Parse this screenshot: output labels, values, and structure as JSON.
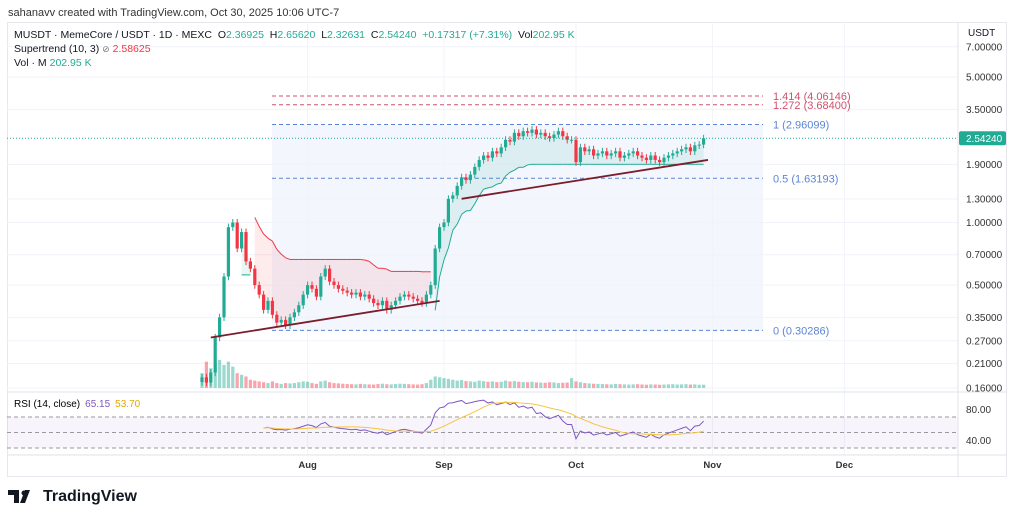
{
  "credit": "sahanavv created with TradingView.com, Oct 30, 2025 10:06 UTC-7",
  "legend": {
    "symbol": "MUSDT · MemeCore / USDT · 1D · MEXC",
    "o_label": "O",
    "o": "2.36925",
    "h_label": "H",
    "h": "2.65620",
    "l_label": "L",
    "l": "2.32631",
    "c_label": "C",
    "c": "2.54240",
    "change": "+0.17317 (+7.31%)",
    "vol_label": "Vol",
    "vol": "202.95 K",
    "supertrend_label": "Supertrend (10, 3)",
    "supertrend_value": "2.58625",
    "volume_label": "Vol · M",
    "volume_value": "202.95 K",
    "rsi_label": "RSI (14, close)",
    "rsi_value": "65.15",
    "rsi_ma_value": "53.70"
  },
  "colors": {
    "up": "#22ab94",
    "down": "#f23645",
    "fib_blue": "#5b85d6",
    "fib_red": "#d0506e",
    "trendline": "#7b1d2a",
    "rsi": "#7e57c2",
    "rsi_ma": "#f5c542"
  },
  "chart_data": {
    "type": "candlestick",
    "currency": "USDT",
    "scale": "log",
    "start_date": "2025-07-08",
    "ylim": [
      0.16,
      7.0
    ],
    "y_ticks": [
      "7.00000",
      "5.00000",
      "3.50000",
      "1.90000",
      "1.30000",
      "1.00000",
      "0.70000",
      "0.50000",
      "0.35000",
      "0.27000",
      "0.21000",
      "0.16000"
    ],
    "last_price": "2.54240",
    "x_ticks": [
      {
        "label": "Aug",
        "date": "2025-08-01"
      },
      {
        "label": "Sep",
        "date": "2025-09-01"
      },
      {
        "label": "Oct",
        "date": "2025-10-01"
      },
      {
        "label": "Nov",
        "date": "2025-11-01"
      },
      {
        "label": "Dec",
        "date": "2025-12-01"
      }
    ],
    "closes": [
      0.18,
      0.17,
      0.19,
      0.28,
      0.35,
      0.55,
      0.95,
      1.0,
      0.75,
      0.9,
      0.65,
      0.6,
      0.5,
      0.45,
      0.38,
      0.42,
      0.36,
      0.33,
      0.34,
      0.32,
      0.35,
      0.37,
      0.4,
      0.45,
      0.5,
      0.48,
      0.44,
      0.55,
      0.6,
      0.52,
      0.5,
      0.48,
      0.47,
      0.46,
      0.45,
      0.46,
      0.44,
      0.45,
      0.43,
      0.41,
      0.4,
      0.42,
      0.38,
      0.4,
      0.42,
      0.44,
      0.45,
      0.44,
      0.43,
      0.42,
      0.41,
      0.45,
      0.5,
      0.75,
      0.95,
      1.0,
      1.3,
      1.35,
      1.5,
      1.65,
      1.6,
      1.7,
      1.85,
      2.0,
      2.1,
      2.05,
      2.2,
      2.15,
      2.3,
      2.5,
      2.45,
      2.7,
      2.6,
      2.75,
      2.7,
      2.8,
      2.65,
      2.7,
      2.6,
      2.55,
      2.65,
      2.75,
      2.6,
      2.5,
      2.5,
      1.95,
      2.3,
      2.2,
      2.25,
      2.1,
      2.15,
      2.2,
      2.1,
      2.15,
      2.2,
      2.05,
      2.1,
      2.15,
      2.2,
      2.1,
      2.05,
      2.0,
      2.1,
      2.0,
      1.95,
      2.05,
      2.1,
      2.15,
      2.2,
      2.25,
      2.3,
      2.2,
      2.35,
      2.37,
      2.54
    ],
    "volumes_k": [
      900,
      1600,
      1200,
      1500,
      1700,
      1400,
      1600,
      1300,
      900,
      800,
      700,
      500,
      450,
      400,
      350,
      300,
      400,
      300,
      250,
      300,
      280,
      300,
      350,
      400,
      380,
      300,
      250,
      400,
      450,
      350,
      300,
      280,
      260,
      240,
      230,
      220,
      250,
      230,
      220,
      210,
      240,
      260,
      230,
      220,
      240,
      260,
      250,
      230,
      220,
      210,
      230,
      300,
      500,
      700,
      650,
      600,
      550,
      500,
      450,
      480,
      420,
      400,
      380,
      450,
      420,
      380,
      400,
      360,
      380,
      450,
      400,
      420,
      380,
      360,
      350,
      380,
      340,
      330,
      320,
      350,
      340,
      300,
      320,
      330,
      600,
      400,
      350,
      300,
      280,
      260,
      250,
      240,
      230,
      220,
      250,
      230,
      220,
      210,
      220,
      230,
      210,
      200,
      220,
      210,
      200,
      210,
      220,
      230,
      210,
      220,
      230,
      210,
      220,
      200,
      202.95
    ],
    "fibonacci": [
      {
        "label": "1.414 (4.06146)",
        "value": 4.06146,
        "color": "red"
      },
      {
        "label": "1.272 (3.68400)",
        "value": 3.684,
        "color": "red"
      },
      {
        "label": "1 (2.96099)",
        "value": 2.96099,
        "color": "blue"
      },
      {
        "label": "0.5 (1.63193)",
        "value": 1.63193,
        "color": "blue"
      },
      {
        "label": "0 (0.30286)",
        "value": 0.30286,
        "color": "blue"
      }
    ],
    "trendlines": [
      {
        "from": [
          "2025-07-10",
          0.28
        ],
        "to": [
          "2025-08-31",
          0.42
        ]
      },
      {
        "from": [
          "2025-09-05",
          1.3
        ],
        "to": [
          "2025-10-31",
          2.0
        ]
      }
    ],
    "rsi": {
      "period": 14,
      "y_ticks": [
        "80.00",
        "40.00"
      ],
      "bands": [
        70,
        50,
        30
      ]
    }
  },
  "footer": {
    "brand": "TradingView"
  }
}
